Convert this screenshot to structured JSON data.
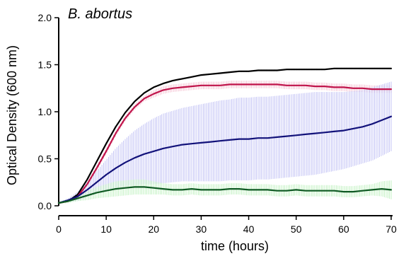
{
  "chart_data": {
    "type": "line",
    "title": "B. abortus",
    "xlabel": "time (hours)",
    "ylabel": "Optical Density (600 nm)",
    "xlim": [
      0,
      70
    ],
    "ylim": [
      0,
      2
    ],
    "xticks": [
      0,
      10,
      20,
      30,
      40,
      50,
      60,
      70
    ],
    "yticks": [
      0.0,
      0.5,
      1.0,
      1.5,
      2.0
    ],
    "xtick_labels": [
      "0",
      "10",
      "20",
      "30",
      "40",
      "50",
      "60",
      "70"
    ],
    "ytick_labels": [
      "0.0",
      "0.5",
      "1.0",
      "1.5",
      "2.0"
    ],
    "grid": false,
    "legend": "none",
    "series": [
      {
        "color": "#000000",
        "error_color": "#bdbdbd",
        "x": [
          0,
          2,
          4,
          6,
          8,
          10,
          12,
          14,
          16,
          18,
          20,
          22,
          24,
          26,
          28,
          30,
          32,
          34,
          36,
          38,
          40,
          42,
          44,
          46,
          48,
          50,
          52,
          54,
          56,
          58,
          60,
          62,
          64,
          66,
          68,
          70
        ],
        "values": [
          0.03,
          0.05,
          0.12,
          0.28,
          0.47,
          0.66,
          0.84,
          0.99,
          1.11,
          1.2,
          1.26,
          1.3,
          1.33,
          1.35,
          1.37,
          1.39,
          1.4,
          1.41,
          1.42,
          1.43,
          1.43,
          1.44,
          1.44,
          1.44,
          1.45,
          1.45,
          1.45,
          1.45,
          1.45,
          1.46,
          1.46,
          1.46,
          1.46,
          1.46,
          1.46,
          1.46
        ],
        "error": [
          0.01,
          0.01,
          0.01,
          0.01,
          0.01,
          0.01,
          0.01,
          0.01,
          0.01,
          0.01,
          0.01,
          0.01,
          0.01,
          0.01,
          0.01,
          0.01,
          0.01,
          0.01,
          0.01,
          0.01,
          0.01,
          0.01,
          0.01,
          0.01,
          0.01,
          0.01,
          0.01,
          0.01,
          0.01,
          0.01,
          0.01,
          0.01,
          0.01,
          0.01,
          0.01,
          0.01
        ]
      },
      {
        "color": "#c0144b",
        "error_color": "#f2a9c0",
        "x": [
          0,
          2,
          4,
          6,
          8,
          10,
          12,
          14,
          16,
          18,
          20,
          22,
          24,
          26,
          28,
          30,
          32,
          34,
          36,
          38,
          40,
          42,
          44,
          46,
          48,
          50,
          52,
          54,
          56,
          58,
          60,
          62,
          64,
          66,
          68,
          70
        ],
        "values": [
          0.03,
          0.05,
          0.1,
          0.23,
          0.4,
          0.58,
          0.77,
          0.93,
          1.05,
          1.14,
          1.19,
          1.23,
          1.25,
          1.26,
          1.27,
          1.28,
          1.28,
          1.28,
          1.29,
          1.29,
          1.29,
          1.29,
          1.29,
          1.29,
          1.28,
          1.28,
          1.28,
          1.27,
          1.27,
          1.26,
          1.26,
          1.25,
          1.25,
          1.24,
          1.24,
          1.24
        ],
        "error": [
          0.01,
          0.01,
          0.02,
          0.02,
          0.03,
          0.03,
          0.03,
          0.03,
          0.03,
          0.03,
          0.04,
          0.04,
          0.04,
          0.04,
          0.04,
          0.04,
          0.04,
          0.04,
          0.04,
          0.04,
          0.04,
          0.04,
          0.04,
          0.04,
          0.04,
          0.04,
          0.04,
          0.04,
          0.04,
          0.04,
          0.04,
          0.04,
          0.04,
          0.04,
          0.04,
          0.04
        ]
      },
      {
        "color": "#12127a",
        "error_color": "#a8a8f0",
        "x": [
          0,
          2,
          4,
          6,
          8,
          10,
          12,
          14,
          16,
          18,
          20,
          22,
          24,
          26,
          28,
          30,
          32,
          34,
          36,
          38,
          40,
          42,
          44,
          46,
          48,
          50,
          52,
          54,
          56,
          58,
          60,
          62,
          64,
          66,
          68,
          70
        ],
        "values": [
          0.03,
          0.06,
          0.1,
          0.17,
          0.25,
          0.33,
          0.4,
          0.46,
          0.51,
          0.55,
          0.58,
          0.61,
          0.63,
          0.65,
          0.66,
          0.67,
          0.68,
          0.69,
          0.7,
          0.71,
          0.71,
          0.72,
          0.72,
          0.73,
          0.74,
          0.75,
          0.76,
          0.77,
          0.78,
          0.79,
          0.8,
          0.82,
          0.84,
          0.87,
          0.91,
          0.95
        ],
        "error": [
          0.01,
          0.02,
          0.05,
          0.08,
          0.12,
          0.16,
          0.21,
          0.25,
          0.29,
          0.32,
          0.35,
          0.37,
          0.38,
          0.39,
          0.4,
          0.41,
          0.42,
          0.43,
          0.43,
          0.44,
          0.44,
          0.44,
          0.44,
          0.44,
          0.44,
          0.44,
          0.44,
          0.44,
          0.43,
          0.42,
          0.41,
          0.4,
          0.39,
          0.39,
          0.38,
          0.37
        ]
      },
      {
        "color": "#0f5a23",
        "error_color": "#a8eca8",
        "x": [
          0,
          2,
          4,
          6,
          8,
          10,
          12,
          14,
          16,
          18,
          20,
          22,
          24,
          26,
          28,
          30,
          32,
          34,
          36,
          38,
          40,
          42,
          44,
          46,
          48,
          50,
          52,
          54,
          56,
          58,
          60,
          62,
          64,
          66,
          68,
          70
        ],
        "values": [
          0.03,
          0.05,
          0.08,
          0.11,
          0.14,
          0.16,
          0.18,
          0.19,
          0.2,
          0.2,
          0.19,
          0.18,
          0.17,
          0.17,
          0.18,
          0.17,
          0.17,
          0.17,
          0.18,
          0.18,
          0.17,
          0.17,
          0.17,
          0.16,
          0.16,
          0.17,
          0.16,
          0.16,
          0.16,
          0.16,
          0.15,
          0.15,
          0.16,
          0.17,
          0.18,
          0.17
        ],
        "error": [
          0.01,
          0.02,
          0.03,
          0.05,
          0.06,
          0.07,
          0.08,
          0.08,
          0.08,
          0.08,
          0.07,
          0.06,
          0.06,
          0.06,
          0.06,
          0.06,
          0.06,
          0.06,
          0.06,
          0.06,
          0.06,
          0.06,
          0.06,
          0.06,
          0.06,
          0.06,
          0.06,
          0.06,
          0.06,
          0.06,
          0.06,
          0.06,
          0.06,
          0.06,
          0.08,
          0.1
        ]
      }
    ]
  }
}
